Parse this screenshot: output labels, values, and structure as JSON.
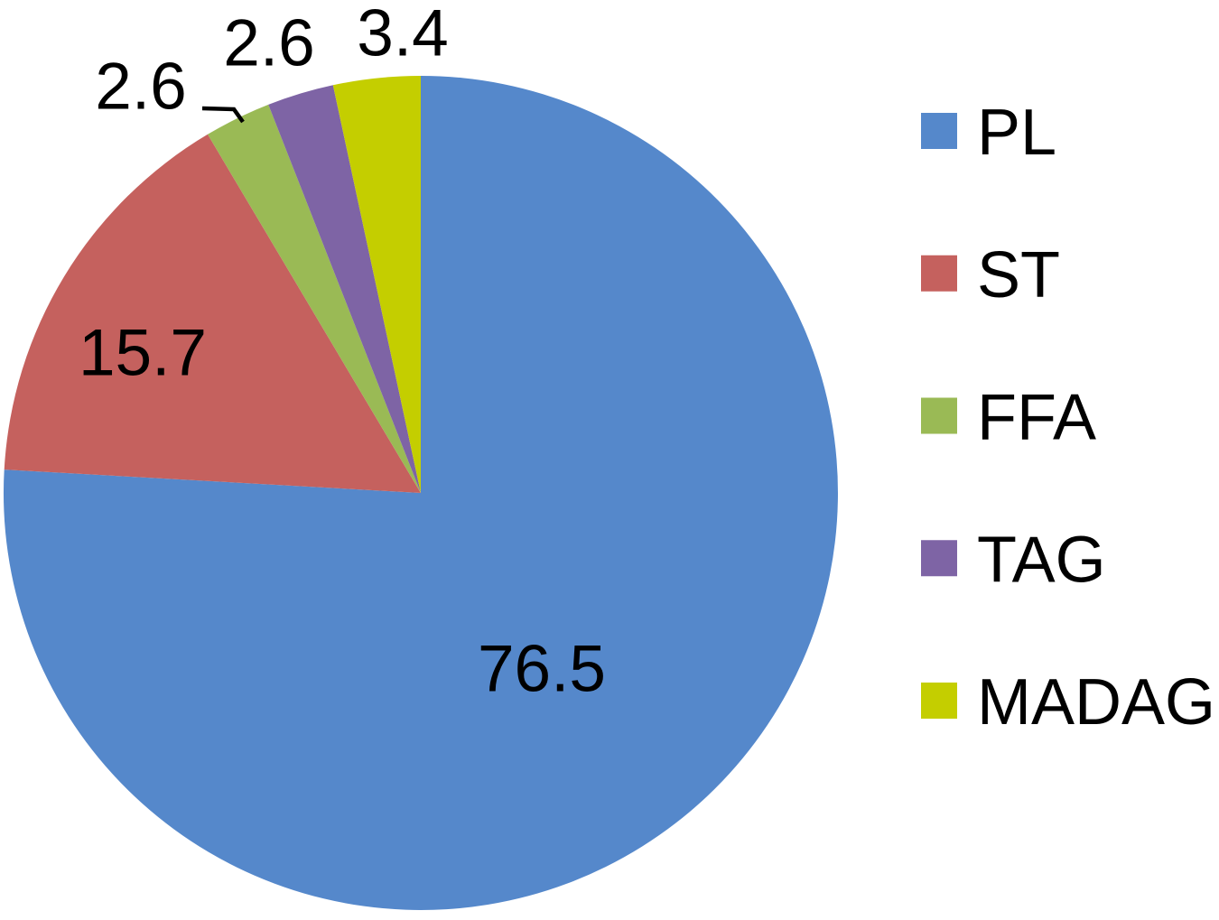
{
  "figure": {
    "background": "#FFFFFF"
  },
  "chart_data": {
    "type": "pie",
    "title": "",
    "categories": [
      "PL",
      "ST",
      "FFA",
      "TAG",
      "MADAG"
    ],
    "values": [
      76.5,
      15.7,
      2.6,
      2.6,
      3.4
    ],
    "slices": [
      {
        "label": "PL",
        "value": 76.5,
        "display": "76.5",
        "color": "#5588CB",
        "label_placement": "inside"
      },
      {
        "label": "ST",
        "value": 15.7,
        "display": "15.7",
        "color": "#C5615E",
        "label_placement": "inside"
      },
      {
        "label": "FFA",
        "value": 2.6,
        "display": "2.6",
        "color": "#9ABA55",
        "label_placement": "outside-with-leader"
      },
      {
        "label": "TAG",
        "value": 2.6,
        "display": "2.6",
        "color": "#7E64A5",
        "label_placement": "outside"
      },
      {
        "label": "MADAG",
        "value": 3.4,
        "display": "3.4",
        "color": "#C4CE00",
        "label_placement": "outside"
      }
    ],
    "legend": {
      "position": "right",
      "entries": [
        "PL",
        "ST",
        "FFA",
        "TAG",
        "MADAG"
      ]
    },
    "start_angle_deg": 0,
    "direction": "clockwise",
    "label_font_color": "#000000",
    "background": "#FFFFFF"
  }
}
